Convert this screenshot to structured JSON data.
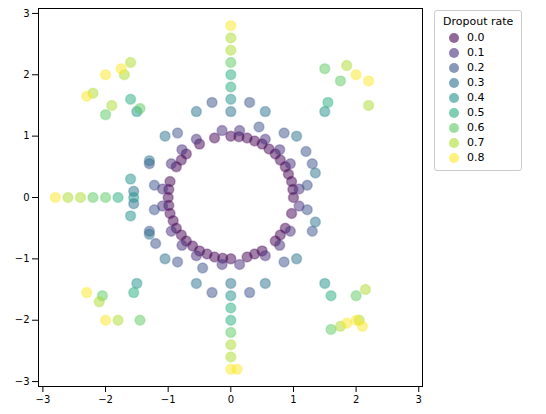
{
  "chart_data": {
    "type": "scatter",
    "legend_title": "Dropout rate",
    "legend": "right",
    "marker": "circle",
    "xlim": [
      -3.07,
      3.06
    ],
    "ylim": [
      -3.08,
      3.08
    ],
    "xticks": [
      -3,
      -2,
      -1,
      0,
      1,
      2,
      3
    ],
    "yticks": [
      -3,
      -2,
      -1,
      0,
      1,
      2,
      3
    ],
    "grid": false,
    "series": [
      {
        "name": "0.0",
        "color": "#440154",
        "values": [
          [
            1,
            0
          ],
          [
            0.97,
            0.26
          ],
          [
            0.87,
            0.5
          ],
          [
            0.71,
            0.71
          ],
          [
            0.5,
            0.87
          ],
          [
            0.26,
            0.97
          ],
          [
            0,
            1
          ],
          [
            -0.26,
            0.97
          ],
          [
            -0.5,
            0.87
          ],
          [
            -0.71,
            0.71
          ],
          [
            -0.87,
            0.5
          ],
          [
            -0.97,
            0.26
          ],
          [
            -1,
            0
          ],
          [
            -0.97,
            -0.26
          ],
          [
            -0.87,
            -0.5
          ],
          [
            -0.71,
            -0.71
          ],
          [
            -0.5,
            -0.87
          ],
          [
            -0.26,
            -0.97
          ],
          [
            0,
            -1
          ],
          [
            0.26,
            -0.97
          ],
          [
            0.5,
            -0.87
          ],
          [
            0.71,
            -0.71
          ],
          [
            0.87,
            -0.5
          ],
          [
            0.97,
            -0.26
          ],
          [
            0.99,
            0.13
          ],
          [
            0.92,
            0.38
          ],
          [
            0.79,
            0.61
          ],
          [
            0.61,
            0.79
          ],
          [
            0.38,
            0.92
          ],
          [
            0.13,
            0.99
          ],
          [
            -0.99,
            -0.13
          ],
          [
            -0.92,
            -0.38
          ],
          [
            -0.79,
            -0.61
          ],
          [
            -0.61,
            -0.79
          ],
          [
            -0.38,
            -0.92
          ],
          [
            -0.13,
            -0.99
          ],
          [
            -0.99,
            0.13
          ],
          [
            -0.79,
            0.61
          ],
          [
            0.79,
            -0.61
          ],
          [
            0.38,
            -0.92
          ]
        ]
      },
      {
        "name": "0.1",
        "color": "#472d7b",
        "values": [
          [
            1.09,
            0.14
          ],
          [
            0.95,
            0.55
          ],
          [
            0.55,
            0.95
          ],
          [
            0.14,
            1.09
          ],
          [
            -0.14,
            1.09
          ],
          [
            -0.55,
            0.95
          ],
          [
            -0.95,
            0.55
          ],
          [
            -1.09,
            0.14
          ],
          [
            -1.09,
            -0.14
          ],
          [
            -0.95,
            -0.55
          ],
          [
            -0.55,
            -0.95
          ],
          [
            -0.14,
            -1.09
          ],
          [
            0.14,
            -1.09
          ],
          [
            0.55,
            -0.95
          ],
          [
            0.95,
            -0.55
          ],
          [
            1.09,
            -0.14
          ],
          [
            0.78,
            0.78
          ],
          [
            -0.78,
            0.78
          ],
          [
            -0.78,
            -0.78
          ],
          [
            0.78,
            -0.78
          ]
        ]
      },
      {
        "name": "0.2",
        "color": "#3b528b",
        "values": [
          [
            0.3,
            1.55
          ],
          [
            -0.3,
            1.55
          ],
          [
            0.3,
            -1.55
          ],
          [
            -0.3,
            -1.55
          ],
          [
            1.3,
            0.55
          ],
          [
            -1.3,
            0.55
          ],
          [
            1.3,
            -0.55
          ],
          [
            -1.3,
            -0.55
          ],
          [
            0.85,
            1.05
          ],
          [
            -0.85,
            1.05
          ],
          [
            0.85,
            -1.05
          ],
          [
            -0.85,
            -1.05
          ],
          [
            1.2,
            0.75
          ],
          [
            -1.2,
            -0.75
          ],
          [
            1.22,
            0.2
          ],
          [
            -1.22,
            -0.2
          ],
          [
            1.22,
            -0.2
          ],
          [
            -1.22,
            0.2
          ],
          [
            0.45,
            1.15
          ],
          [
            -0.45,
            -1.15
          ]
        ]
      },
      {
        "name": "0.3",
        "color": "#2c728e",
        "values": [
          [
            -1.55,
            0.1
          ],
          [
            -1.55,
            -0.1
          ],
          [
            -1.3,
            0.6
          ],
          [
            -1.3,
            -0.6
          ],
          [
            0.55,
            1.4
          ],
          [
            -0.55,
            1.4
          ],
          [
            0.55,
            -1.4
          ],
          [
            -0.55,
            -1.4
          ],
          [
            1.05,
            1.0
          ],
          [
            -1.05,
            -1.0
          ],
          [
            1.05,
            -1.0
          ],
          [
            -1.05,
            1.0
          ],
          [
            0,
            1.4
          ],
          [
            0,
            -1.4
          ],
          [
            1.35,
            0.4
          ],
          [
            1.35,
            -0.4
          ]
        ]
      },
      {
        "name": "0.4",
        "color": "#21918c",
        "values": [
          [
            -1.55,
            0
          ],
          [
            0,
            1.6
          ],
          [
            0,
            -1.6
          ],
          [
            1.5,
            1.4
          ],
          [
            -1.5,
            1.4
          ],
          [
            1.5,
            -1.4
          ],
          [
            -1.5,
            -1.4
          ],
          [
            -1.6,
            0.3
          ],
          [
            -1.6,
            -0.3
          ]
        ]
      },
      {
        "name": "0.5",
        "color": "#28ae80",
        "values": [
          [
            -1.8,
            0
          ],
          [
            0,
            1.8
          ],
          [
            0,
            2.0
          ],
          [
            0,
            -1.8
          ],
          [
            0,
            -2.0
          ],
          [
            1.55,
            1.55
          ],
          [
            -1.55,
            -1.55
          ],
          [
            1.6,
            -1.6
          ],
          [
            -1.6,
            1.6
          ]
        ]
      },
      {
        "name": "0.6",
        "color": "#5ec962",
        "values": [
          [
            -2.0,
            0
          ],
          [
            -2.2,
            0
          ],
          [
            0,
            2.2
          ],
          [
            0,
            -2.2
          ],
          [
            1.5,
            2.1
          ],
          [
            1.75,
            1.9
          ],
          [
            -1.45,
            1.45
          ],
          [
            -2.0,
            1.35
          ],
          [
            -1.45,
            -2.0
          ],
          [
            2.0,
            -1.6
          ],
          [
            1.6,
            -2.15
          ],
          [
            -2.05,
            -1.6
          ]
        ]
      },
      {
        "name": "0.7",
        "color": "#addc30",
        "values": [
          [
            -2.4,
            0
          ],
          [
            -2.6,
            0
          ],
          [
            0,
            2.4
          ],
          [
            0,
            2.6
          ],
          [
            0,
            -2.4
          ],
          [
            0,
            -2.6
          ],
          [
            -1.9,
            1.5
          ],
          [
            -1.7,
            2.0
          ],
          [
            -2.2,
            1.7
          ],
          [
            1.85,
            2.15
          ],
          [
            2.2,
            1.5
          ],
          [
            -1.8,
            -2.0
          ],
          [
            -2.1,
            -1.7
          ],
          [
            2.05,
            -2.0
          ],
          [
            1.75,
            -2.1
          ],
          [
            2.15,
            -1.5
          ],
          [
            -1.6,
            2.2
          ]
        ]
      },
      {
        "name": "0.8",
        "color": "#fde725",
        "values": [
          [
            -2.8,
            0
          ],
          [
            0,
            2.8
          ],
          [
            0,
            -2.8
          ],
          [
            2.0,
            2.0
          ],
          [
            -2.0,
            2.0
          ],
          [
            -2.0,
            -2.0
          ],
          [
            2.0,
            -2.0
          ],
          [
            2.2,
            1.9
          ],
          [
            -2.3,
            1.65
          ],
          [
            -2.3,
            -1.55
          ],
          [
            2.1,
            -2.1
          ],
          [
            0.1,
            -2.8
          ],
          [
            -1.75,
            2.1
          ],
          [
            1.85,
            -2.05
          ]
        ]
      }
    ]
  }
}
